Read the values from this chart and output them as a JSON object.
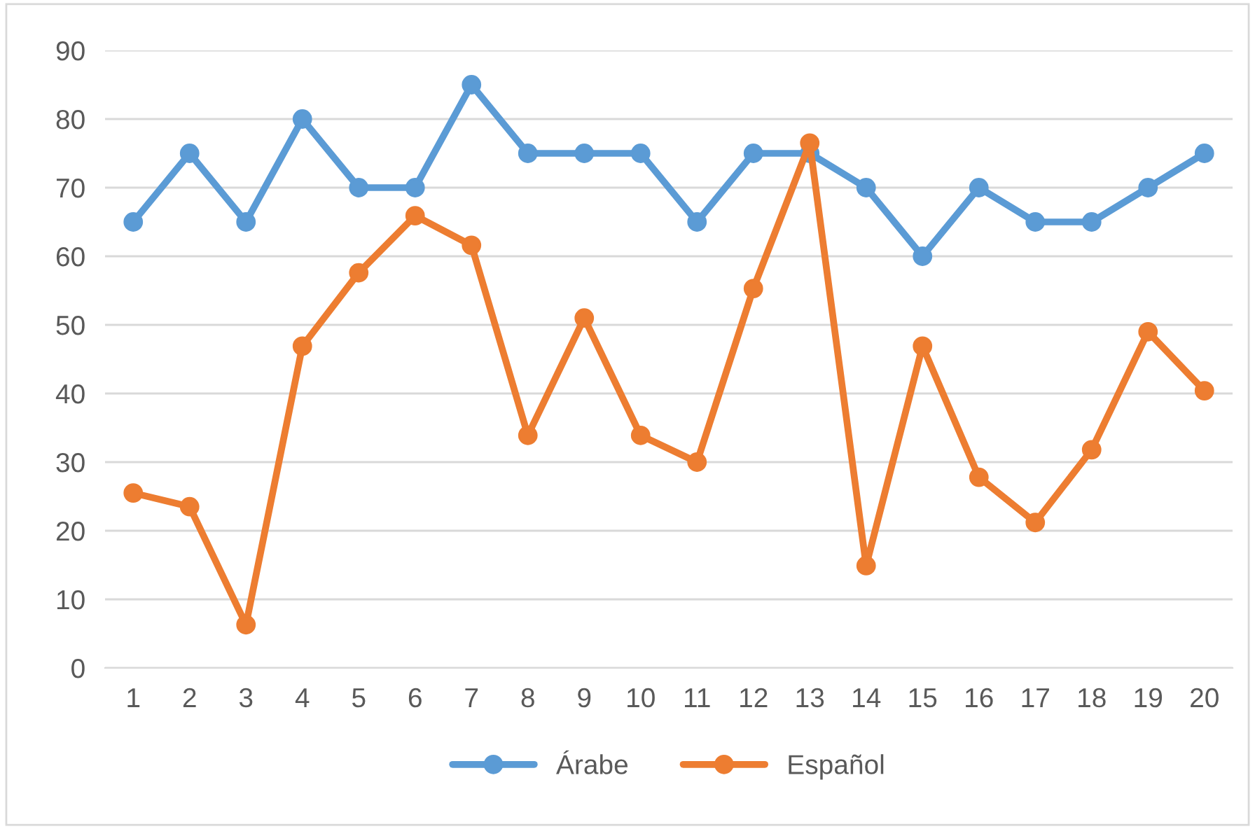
{
  "chart_data": {
    "type": "line",
    "categories": [
      "1",
      "2",
      "3",
      "4",
      "5",
      "6",
      "7",
      "8",
      "9",
      "10",
      "11",
      "12",
      "13",
      "14",
      "15",
      "16",
      "17",
      "18",
      "19",
      "20"
    ],
    "series": [
      {
        "name": "Árabe",
        "color": "#5b9bd5",
        "values": [
          65,
          75,
          65,
          80,
          70,
          70,
          85,
          75,
          75,
          75,
          65,
          75,
          75,
          70,
          60,
          70,
          65,
          65,
          70,
          75
        ]
      },
      {
        "name": "Español",
        "color": "#ed7d31",
        "values": [
          25.5,
          23.5,
          6.3,
          46.9,
          57.6,
          65.9,
          61.6,
          33.9,
          51,
          33.9,
          30,
          55.3,
          76.5,
          14.9,
          46.9,
          27.8,
          21.2,
          31.8,
          49,
          40.4
        ]
      }
    ],
    "ylim": [
      0,
      90
    ],
    "yticks": [
      0,
      10,
      20,
      30,
      40,
      50,
      60,
      70,
      80,
      90
    ],
    "grid": "y",
    "legend": "bottom",
    "marker": "circle",
    "line_style": "solid"
  }
}
